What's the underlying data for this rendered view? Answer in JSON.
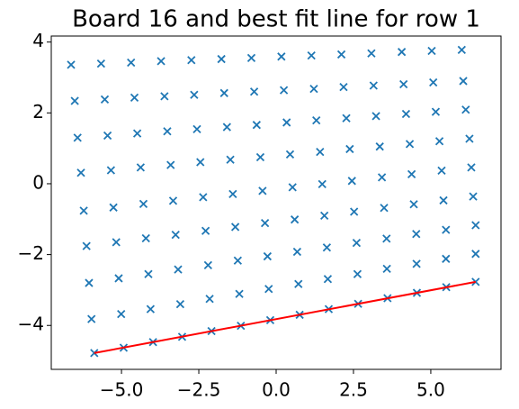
{
  "chart_data": {
    "type": "scatter",
    "title": "Board 16 and best fit line for row 1",
    "xlim": [
      -7.27,
      7.27
    ],
    "ylim": [
      -5.24,
      4.17
    ],
    "xticks": [
      {
        "value": -5,
        "label": "−5.0"
      },
      {
        "value": -2.5,
        "label": "−2.5"
      },
      {
        "value": 0,
        "label": "0.0"
      },
      2.5,
      {
        "value": 5,
        "label": "5.0"
      }
    ],
    "yticks": [
      {
        "value": -4,
        "label": "−4"
      },
      {
        "value": -2,
        "label": "−2"
      },
      0,
      2,
      4
    ],
    "series": [
      {
        "type": "scatter",
        "marker": "x",
        "color": "#1f77b4",
        "x": [
          -5.88,
          -4.93,
          -3.98,
          -3.04,
          -2.09,
          -1.14,
          -0.19,
          0.76,
          1.7,
          2.65,
          3.6,
          4.55,
          5.5,
          6.45,
          -5.97,
          -5.01,
          -4.06,
          -3.1,
          -2.15,
          -1.19,
          -0.24,
          0.72,
          1.67,
          2.63,
          3.58,
          4.54,
          5.49,
          6.45,
          -6.05,
          -5.09,
          -4.13,
          -3.17,
          -2.2,
          -1.24,
          -0.28,
          0.68,
          1.64,
          2.6,
          3.57,
          4.53,
          5.49,
          6.45,
          -6.13,
          -5.17,
          -4.21,
          -3.25,
          -2.28,
          -1.32,
          -0.36,
          0.6,
          1.56,
          2.52,
          3.49,
          4.45,
          5.41,
          6.37,
          -6.22,
          -5.26,
          -4.29,
          -3.33,
          -2.36,
          -1.4,
          -0.44,
          0.53,
          1.49,
          2.45,
          3.42,
          4.38,
          5.35,
          6.31,
          -6.31,
          -5.34,
          -4.38,
          -3.41,
          -2.45,
          -1.48,
          -0.51,
          0.45,
          1.42,
          2.38,
          3.35,
          4.32,
          5.28,
          6.25,
          -6.42,
          -5.45,
          -4.49,
          -3.52,
          -2.56,
          -1.59,
          -0.63,
          0.34,
          1.3,
          2.27,
          3.23,
          4.2,
          5.16,
          6.13,
          -6.51,
          -5.54,
          -4.58,
          -3.61,
          -2.65,
          -1.68,
          -0.71,
          0.25,
          1.22,
          2.18,
          3.15,
          4.12,
          5.08,
          6.05,
          -6.63,
          -5.66,
          -4.69,
          -3.72,
          -2.74,
          -1.77,
          -0.8,
          0.17,
          1.14,
          2.11,
          3.08,
          4.06,
          5.03,
          6.0
        ],
        "values": [
          -4.78,
          -4.63,
          -4.47,
          -4.32,
          -4.16,
          -4.01,
          -3.85,
          -3.7,
          -3.54,
          -3.39,
          -3.23,
          -3.08,
          -2.92,
          -2.77,
          -3.82,
          -3.68,
          -3.54,
          -3.4,
          -3.25,
          -3.11,
          -2.97,
          -2.83,
          -2.69,
          -2.55,
          -2.4,
          -2.26,
          -2.12,
          -1.98,
          -2.8,
          -2.67,
          -2.55,
          -2.42,
          -2.3,
          -2.17,
          -2.05,
          -1.92,
          -1.8,
          -1.67,
          -1.55,
          -1.42,
          -1.3,
          -1.17,
          -1.76,
          -1.65,
          -1.54,
          -1.44,
          -1.33,
          -1.22,
          -1.11,
          -1.01,
          -0.9,
          -0.79,
          -0.68,
          -0.58,
          -0.47,
          -0.36,
          -0.76,
          -0.67,
          -0.57,
          -0.48,
          -0.38,
          -0.29,
          -0.2,
          -0.1,
          -0.01,
          0.08,
          0.18,
          0.27,
          0.37,
          0.46,
          0.31,
          0.38,
          0.46,
          0.53,
          0.61,
          0.68,
          0.75,
          0.83,
          0.9,
          0.98,
          1.05,
          1.12,
          1.2,
          1.27,
          1.3,
          1.36,
          1.42,
          1.48,
          1.54,
          1.6,
          1.66,
          1.73,
          1.79,
          1.85,
          1.91,
          1.97,
          2.03,
          2.09,
          2.34,
          2.38,
          2.43,
          2.47,
          2.51,
          2.56,
          2.6,
          2.64,
          2.68,
          2.73,
          2.77,
          2.81,
          2.86,
          2.9,
          3.36,
          3.39,
          3.42,
          3.46,
          3.49,
          3.52,
          3.55,
          3.59,
          3.62,
          3.65,
          3.68,
          3.72,
          3.75,
          3.78
        ]
      },
      {
        "type": "line",
        "color": "#ff0000",
        "x": [
          -5.88,
          6.45
        ],
        "values": [
          -4.78,
          -2.77
        ]
      }
    ]
  }
}
